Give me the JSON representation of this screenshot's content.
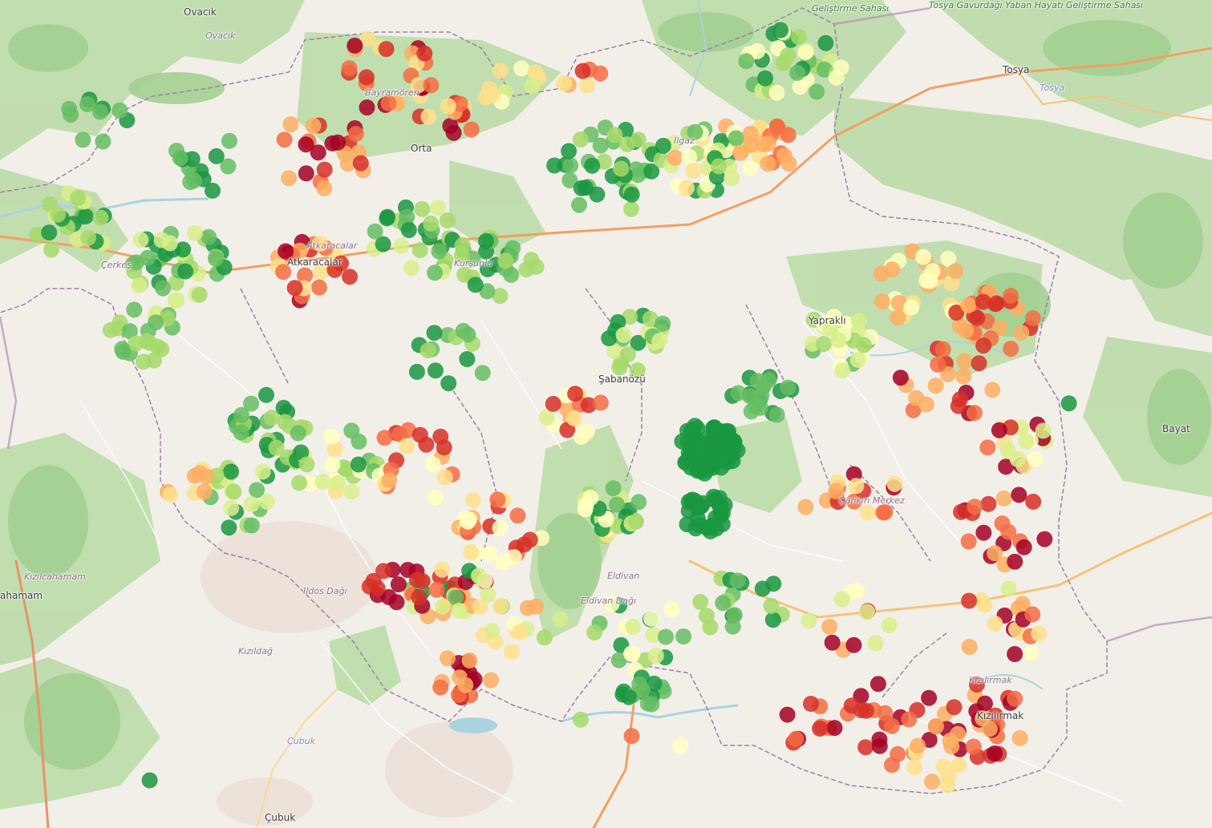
{
  "map": {
    "colors": {
      "land": "#f2efe9",
      "forest": "#a9d19a",
      "forest_dark": "#c3dfb2",
      "water": "#aad3df",
      "road_primary": "#f2a063",
      "road_secondary": "#f7d89a",
      "boundary": "#9e80a8"
    },
    "marker_palette": [
      "#1a9641",
      "#66bd63",
      "#a6d96a",
      "#d9ef8b",
      "#ffffbf",
      "#fee08b",
      "#fdae61",
      "#f46d43",
      "#d73027",
      "#a50026"
    ],
    "places": [
      {
        "label": "Ovacık",
        "style": "town"
      },
      {
        "label": "Ovacık",
        "style": "italic"
      },
      {
        "label": "Geliştirme Sahası",
        "style": "park"
      },
      {
        "label": "Tosya Gavurdağı Yaban Hayatı Geliştirme Sahası",
        "style": "park"
      },
      {
        "label": "Tosya",
        "style": "town"
      },
      {
        "label": "Tosya",
        "style": "water"
      },
      {
        "label": "Bayat",
        "style": "town"
      },
      {
        "label": "Kızılcahamam",
        "style": "italic"
      },
      {
        "label": "ahamam",
        "style": "town"
      },
      {
        "label": "Kızıldağ",
        "style": "italic"
      },
      {
        "label": "Çubuk",
        "style": "water"
      },
      {
        "label": "Çubuk",
        "style": "town"
      },
      {
        "label": "Çankırı Merkez",
        "style": "italic"
      },
      {
        "label": "Eldivan",
        "style": "italic"
      },
      {
        "label": "Eldivan Dağı",
        "style": "italic"
      },
      {
        "label": "Kızılırmak",
        "style": "italic"
      },
      {
        "label": "Yapraklı",
        "style": "town"
      },
      {
        "label": "Ilgaz",
        "style": "italic"
      },
      {
        "label": "Bayramören",
        "style": "italic"
      },
      {
        "label": "Atkaracalar",
        "style": "italic"
      },
      {
        "label": "Atkaracalar",
        "style": "town"
      },
      {
        "label": "Orta",
        "style": "town"
      },
      {
        "label": "Kurşunlu",
        "style": "italic"
      },
      {
        "label": "Çerkeş",
        "style": "italic"
      },
      {
        "label": "Ildos Dağı",
        "style": "italic"
      },
      {
        "label": "Şabanözü",
        "style": "town"
      },
      {
        "label": "Kızılırmak",
        "style": "town"
      }
    ]
  }
}
